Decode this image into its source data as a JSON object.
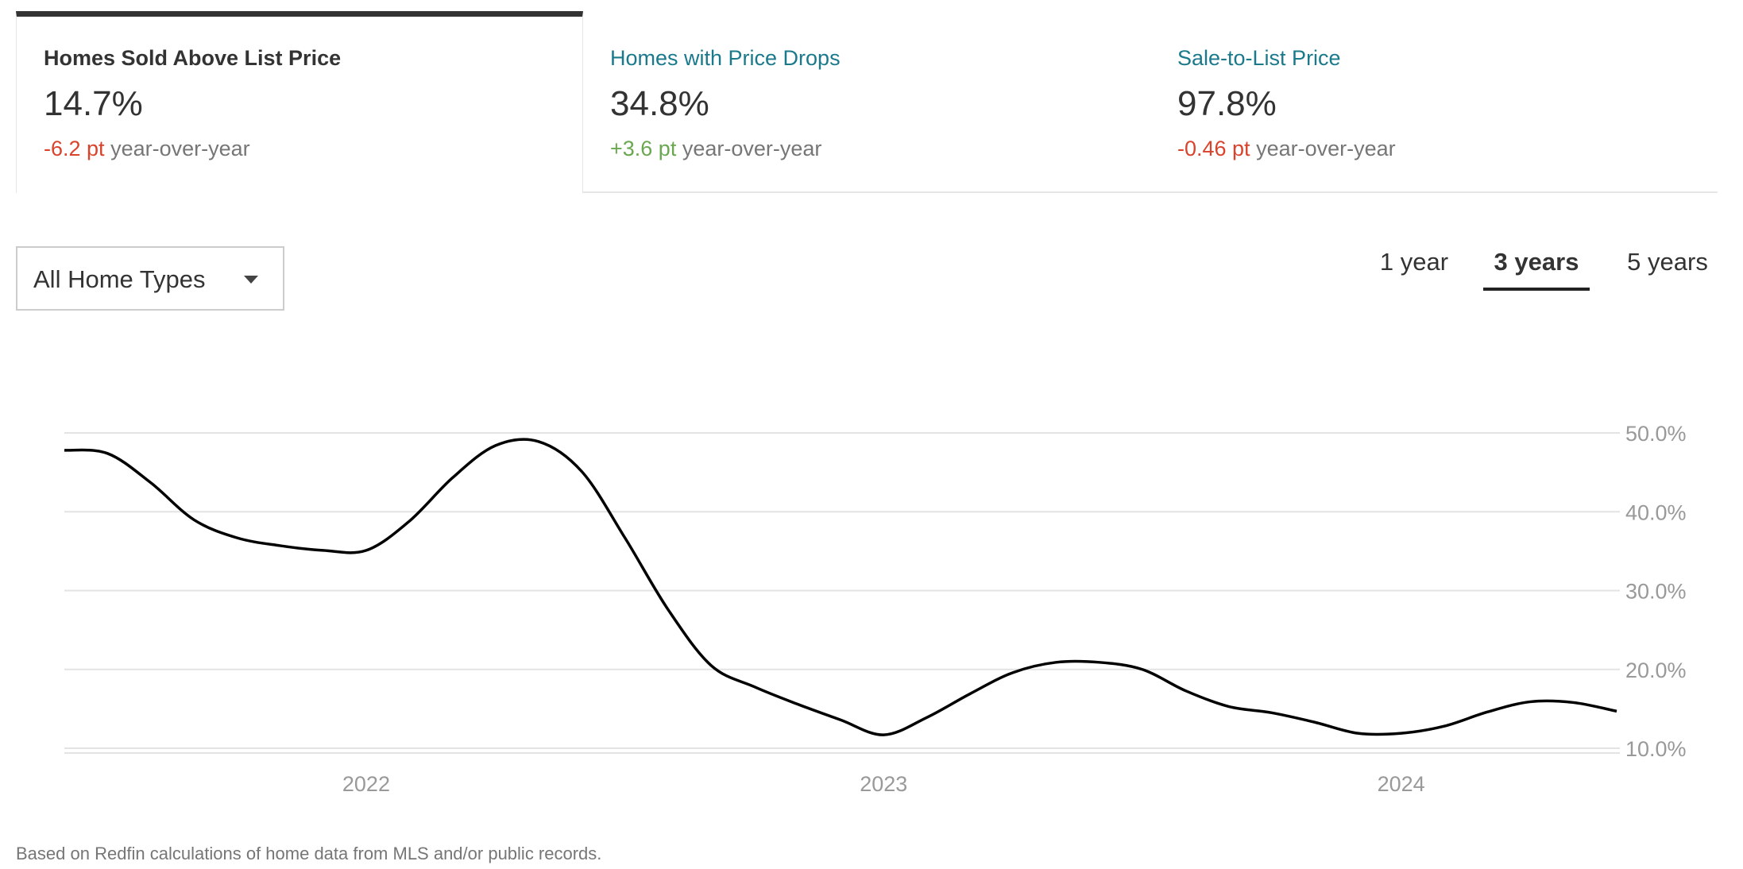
{
  "tabs": [
    {
      "title": "Homes Sold Above List Price",
      "value": "14.7%",
      "change": "-6.2 pt",
      "change_dir": "negative",
      "suffix": "year-over-year",
      "active": true
    },
    {
      "title": "Homes with Price Drops",
      "value": "34.8%",
      "change": "+3.6 pt",
      "change_dir": "positive",
      "suffix": "year-over-year",
      "active": false
    },
    {
      "title": "Sale-to-List Price",
      "value": "97.8%",
      "change": "-0.46 pt",
      "change_dir": "negative",
      "suffix": "year-over-year",
      "active": false
    }
  ],
  "filter": {
    "selected": "All Home Types",
    "icon": "caret-down-icon"
  },
  "ranges": [
    {
      "label": "1 year",
      "active": false
    },
    {
      "label": "3 years",
      "active": true
    },
    {
      "label": "5 years",
      "active": false
    }
  ],
  "colors": {
    "negative": "#d9432b",
    "positive": "#6aa84f",
    "link": "#1a7a8c",
    "line": "#000000",
    "grid": "#e3e3e3"
  },
  "chart_data": {
    "type": "line",
    "grid": true,
    "ylim": [
      10,
      50
    ],
    "yticks": [
      "50.0%",
      "40.0%",
      "30.0%",
      "20.0%",
      "10.0%"
    ],
    "ytick_values": [
      50,
      40,
      30,
      20,
      10
    ],
    "xticks": [
      "2022",
      "2023",
      "2024"
    ],
    "xtick_values": [
      "2022-01",
      "2023-01",
      "2024-01"
    ],
    "x": [
      "2021-06",
      "2021-07",
      "2021-08",
      "2021-09",
      "2021-10",
      "2021-11",
      "2021-12",
      "2022-01",
      "2022-02",
      "2022-03",
      "2022-04",
      "2022-05",
      "2022-06",
      "2022-07",
      "2022-08",
      "2022-09",
      "2022-10",
      "2022-11",
      "2022-12",
      "2023-01",
      "2023-02",
      "2023-03",
      "2023-04",
      "2023-05",
      "2023-06",
      "2023-07",
      "2023-08",
      "2023-09",
      "2023-10",
      "2023-11",
      "2023-12",
      "2024-01",
      "2024-02",
      "2024-03",
      "2024-04",
      "2024-05",
      "2024-06"
    ],
    "values": [
      47.8,
      47.4,
      43.7,
      39.0,
      36.7,
      35.7,
      35.1,
      35.1,
      38.8,
      44.3,
      48.4,
      48.9,
      45.1,
      36.7,
      27.6,
      20.5,
      17.8,
      15.6,
      13.6,
      11.7,
      13.9,
      16.9,
      19.6,
      20.9,
      20.9,
      20.0,
      17.3,
      15.3,
      14.5,
      13.3,
      11.9,
      11.9,
      12.8,
      14.6,
      15.9,
      15.8,
      14.7
    ]
  },
  "footnote": "Based on Redfin calculations of home data from MLS and/or public records."
}
